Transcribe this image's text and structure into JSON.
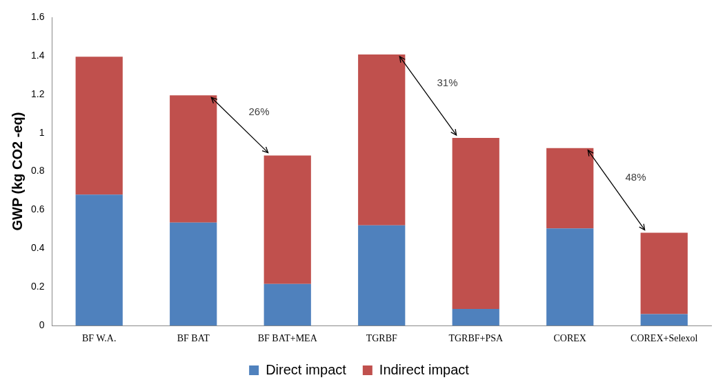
{
  "chart_data": {
    "type": "bar",
    "stacked": true,
    "ylabel": "GWP (kg CO2 -eq)",
    "categories": [
      "BF W.A.",
      "BF BAT",
      "BF BAT+MEA",
      "TGRBF",
      "TGRBF+PSA",
      "COREX",
      "COREX+Selexol"
    ],
    "series": [
      {
        "name": "Direct impact",
        "color": "#4f81bd",
        "values": [
          0.68,
          0.535,
          0.216,
          0.52,
          0.087,
          0.504,
          0.06
        ]
      },
      {
        "name": "Indirect impact",
        "color": "#c0504d",
        "values": [
          0.715,
          0.66,
          0.667,
          0.887,
          0.887,
          0.417,
          0.422
        ]
      }
    ],
    "ylim": [
      0,
      1.6
    ],
    "yticks": [
      0,
      0.2,
      0.4,
      0.6,
      0.8,
      1,
      1.2,
      1.4,
      1.6
    ],
    "grid": false,
    "legend": "bottom",
    "annotations": [
      "26%",
      "31%",
      "48%"
    ]
  }
}
